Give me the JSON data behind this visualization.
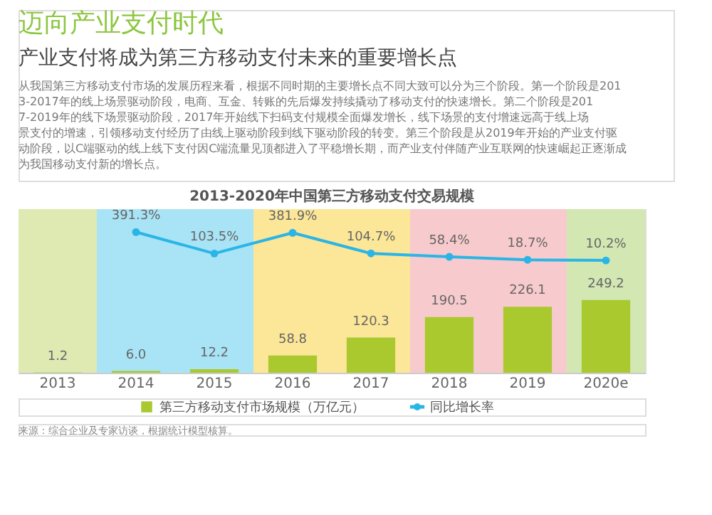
{
  "chart_data": {
    "type": "bar",
    "title": "迈向产业支付时代",
    "subtitle": "产业支付将成为第三方移动支付未来的重要增长点",
    "annotations": [
      "从我国第三方移动支付市场的发展历程来看，根据不同时期的主要增长点不同大致可以分为三个阶段。第一个阶段是2013-2017年的线上场景驱动阶段，电商、互金、转账的先后爆发持续撬动了移动支付的快速增长。第二个阶段是2017-2019年的线下场景驱动阶段，2017年开始线下扫码支付规模全面爆发增长，线下场景的支付增速远高于线上场景支付的增速，引领移动支付经历了由线上驱动阶段到线下驱动阶段的转变。第三个阶段是从2019年开始的产业支付驱动阶段，以C端驱动的线上线下支付因C端流量见顶都进入了平稳增长期，而产业支付伴随产业互联网的快速崛起正逐渐成为我国移动支付新的增长点。",
      "2013-2020年中国第三方移动支付交易规模",
      "来源：综合企业及专家访谈，根据统计模型核算。"
    ],
    "categories": [
      "2013",
      "2014",
      "2015",
      "2016",
      "2017",
      "2018",
      "2019",
      "2020e"
    ],
    "series": [
      {
        "name": "第三方移动支付市场规模（万亿元）",
        "color": "#a9c92f",
        "values": [
          1.2,
          6.0,
          12.2,
          58.8,
          120.3,
          190.5,
          226.1,
          249.2
        ],
        "value_labels": [
          "1.2",
          "6.0",
          "12.2",
          "58.8",
          "120.3",
          "190.5",
          "226.1",
          "249.2"
        ]
      },
      {
        "name": "同比增长率",
        "type": "line",
        "axis": "y2",
        "color": "#2bb5e6",
        "marker": "circle",
        "values": [
          null,
          391.3,
          103.5,
          381.9,
          104.7,
          58.4,
          18.7,
          10.2
        ],
        "value_labels": [
          null,
          "391.3%",
          "103.5%",
          "381.9%",
          "104.7%",
          "58.4%",
          "18.7%",
          "10.2%"
        ]
      }
    ],
    "bands": [
      {
        "axis": "x",
        "from": "2013",
        "to": "2013",
        "color": "#dfe9b2"
      },
      {
        "axis": "x",
        "from": "2014",
        "to": "2015",
        "color": "#a8e4f6"
      },
      {
        "axis": "x",
        "from": "2016",
        "to": "2017",
        "color": "#fce697"
      },
      {
        "axis": "x",
        "from": "2018",
        "to": "2019",
        "color": "#f7cacd"
      },
      {
        "axis": "x",
        "from": "2020e",
        "to": "2020e",
        "color": "#d2e7b2"
      }
    ],
    "ylim": [
      0,
      560
    ],
    "y2lim": [
      -1500,
      700
    ],
    "tick_labels": "x",
    "grid": false,
    "legend": "bottom"
  }
}
